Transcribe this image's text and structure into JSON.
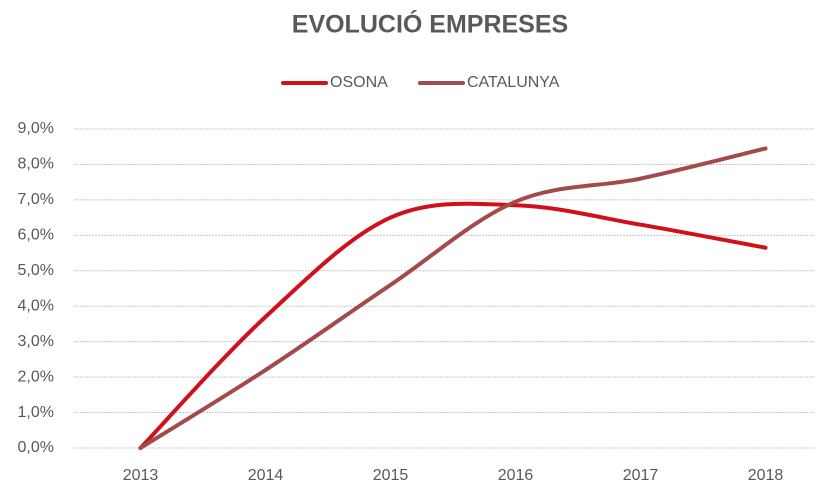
{
  "chart_data": {
    "type": "line",
    "title": "EVOLUCIÓ EMPRESES",
    "categories": [
      "2013",
      "2014",
      "2015",
      "2016",
      "2017",
      "2018"
    ],
    "series": [
      {
        "name": "OSONA",
        "color": "#d0101a",
        "values": [
          0.0,
          3.7,
          6.5,
          6.85,
          6.3,
          5.65
        ]
      },
      {
        "name": "CATALUNYA",
        "color": "#a34a4a",
        "values": [
          0.0,
          2.2,
          4.6,
          6.95,
          7.6,
          8.45
        ]
      }
    ],
    "ylim": [
      0,
      9
    ],
    "yticks": [
      {
        "value": 0,
        "label": "0,0%"
      },
      {
        "value": 1,
        "label": "1,0%"
      },
      {
        "value": 2,
        "label": "2,0%"
      },
      {
        "value": 3,
        "label": "3,0%"
      },
      {
        "value": 4,
        "label": "4,0%"
      },
      {
        "value": 5,
        "label": "5,0%"
      },
      {
        "value": 6,
        "label": "6,0%"
      },
      {
        "value": 7,
        "label": "7,0%"
      },
      {
        "value": 8,
        "label": "8,0%"
      },
      {
        "value": 9,
        "label": "9,0%"
      }
    ],
    "grid": true,
    "smooth": true,
    "legend": "top"
  }
}
